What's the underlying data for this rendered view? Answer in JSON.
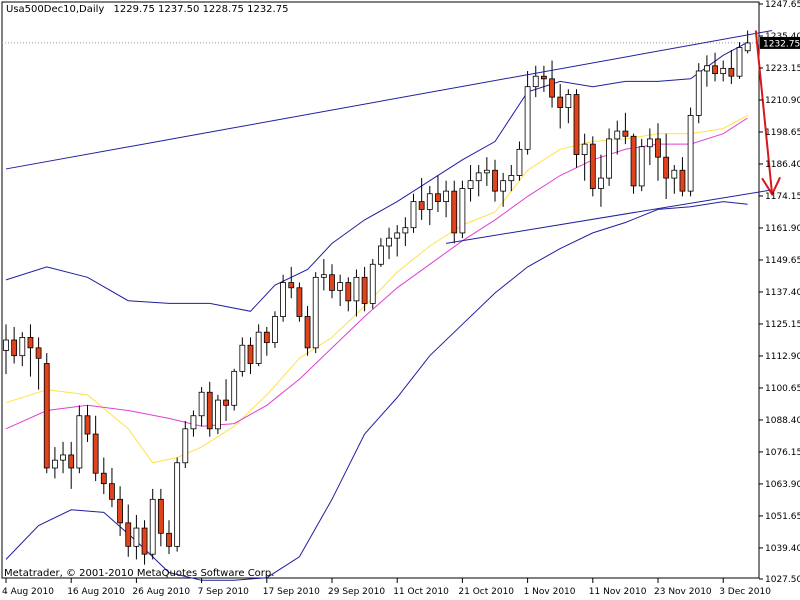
{
  "header": {
    "symbol_text": "Usa500Dec10,Daily",
    "ohlc_text": "1229.75 1237.50 1228.75 1232.75"
  },
  "footer": {
    "copyright": "Metatrader, © 2001-2010 MetaQuotes Software Corp."
  },
  "colors": {
    "background": "#ffffff",
    "frame": "#000000",
    "bull_body": "#ffffff",
    "bear_body": "#e0441c",
    "bollinger": "#1f1f9f",
    "sma_fast": "#ffe14a",
    "sma_slow": "#e040d0",
    "trendline": "#1f1f9f",
    "arrow": "#d81818",
    "current_price_bg": "#000000",
    "current_price_fg": "#ffffff"
  },
  "chart_data": {
    "type": "candlestick",
    "y_axis_ticks": [
      "1247.65",
      "1235.40",
      "1223.15",
      "1210.90",
      "1198.65",
      "1186.40",
      "1174.15",
      "1161.90",
      "1149.65",
      "1137.40",
      "1125.15",
      "1112.90",
      "1100.65",
      "1088.40",
      "1076.15",
      "1063.90",
      "1051.65",
      "1039.40",
      "1027.50"
    ],
    "ylim": [
      1027.5,
      1247.65
    ],
    "current_price": "1232.75",
    "x_axis_labels": [
      "4 Aug 2010",
      "16 Aug 2010",
      "26 Aug 2010",
      "7 Sep 2010",
      "17 Sep 2010",
      "29 Sep 2010",
      "11 Oct 2010",
      "21 Oct 2010",
      "1 Nov 2010",
      "11 Nov 2010",
      "23 Nov 2010",
      "3 Dec 2010"
    ],
    "x_axis_label_indices": [
      0,
      8,
      16,
      24,
      32,
      40,
      48,
      56,
      64,
      72,
      80,
      88
    ],
    "candles": [
      {
        "o": 1115,
        "h": 1125,
        "l": 1106,
        "c": 1119
      },
      {
        "o": 1119,
        "h": 1124,
        "l": 1110,
        "c": 1113
      },
      {
        "o": 1113,
        "h": 1122,
        "l": 1109,
        "c": 1120
      },
      {
        "o": 1120,
        "h": 1125,
        "l": 1105,
        "c": 1116
      },
      {
        "o": 1116,
        "h": 1120,
        "l": 1100,
        "c": 1112
      },
      {
        "o": 1110,
        "h": 1114,
        "l": 1068,
        "c": 1070
      },
      {
        "o": 1070,
        "h": 1078,
        "l": 1066,
        "c": 1073
      },
      {
        "o": 1073,
        "h": 1080,
        "l": 1068,
        "c": 1075
      },
      {
        "o": 1075,
        "h": 1080,
        "l": 1062,
        "c": 1070
      },
      {
        "o": 1070,
        "h": 1094,
        "l": 1068,
        "c": 1090
      },
      {
        "o": 1090,
        "h": 1094,
        "l": 1080,
        "c": 1083
      },
      {
        "o": 1083,
        "h": 1090,
        "l": 1065,
        "c": 1068
      },
      {
        "o": 1068,
        "h": 1074,
        "l": 1060,
        "c": 1064
      },
      {
        "o": 1064,
        "h": 1070,
        "l": 1055,
        "c": 1058
      },
      {
        "o": 1058,
        "h": 1063,
        "l": 1044,
        "c": 1049
      },
      {
        "o": 1049,
        "h": 1056,
        "l": 1036,
        "c": 1040
      },
      {
        "o": 1040,
        "h": 1052,
        "l": 1035,
        "c": 1047
      },
      {
        "o": 1047,
        "h": 1050,
        "l": 1033,
        "c": 1037
      },
      {
        "o": 1037,
        "h": 1062,
        "l": 1035,
        "c": 1058
      },
      {
        "o": 1058,
        "h": 1062,
        "l": 1040,
        "c": 1045
      },
      {
        "o": 1045,
        "h": 1050,
        "l": 1037,
        "c": 1040
      },
      {
        "o": 1040,
        "h": 1074,
        "l": 1038,
        "c": 1072
      },
      {
        "o": 1072,
        "h": 1088,
        "l": 1070,
        "c": 1085
      },
      {
        "o": 1085,
        "h": 1092,
        "l": 1082,
        "c": 1090
      },
      {
        "o": 1090,
        "h": 1101,
        "l": 1086,
        "c": 1099
      },
      {
        "o": 1099,
        "h": 1103,
        "l": 1082,
        "c": 1085
      },
      {
        "o": 1085,
        "h": 1098,
        "l": 1083,
        "c": 1096
      },
      {
        "o": 1096,
        "h": 1104,
        "l": 1088,
        "c": 1094
      },
      {
        "o": 1094,
        "h": 1108,
        "l": 1092,
        "c": 1107
      },
      {
        "o": 1107,
        "h": 1120,
        "l": 1105,
        "c": 1117
      },
      {
        "o": 1117,
        "h": 1120,
        "l": 1106,
        "c": 1110
      },
      {
        "o": 1110,
        "h": 1125,
        "l": 1109,
        "c": 1122
      },
      {
        "o": 1122,
        "h": 1124,
        "l": 1113,
        "c": 1118
      },
      {
        "o": 1118,
        "h": 1130,
        "l": 1116,
        "c": 1128
      },
      {
        "o": 1128,
        "h": 1144,
        "l": 1126,
        "c": 1141
      },
      {
        "o": 1141,
        "h": 1147,
        "l": 1135,
        "c": 1139
      },
      {
        "o": 1139,
        "h": 1141,
        "l": 1126,
        "c": 1128
      },
      {
        "o": 1128,
        "h": 1132,
        "l": 1113,
        "c": 1116
      },
      {
        "o": 1116,
        "h": 1145,
        "l": 1114,
        "c": 1143
      },
      {
        "o": 1143,
        "h": 1150,
        "l": 1138,
        "c": 1144
      },
      {
        "o": 1144,
        "h": 1148,
        "l": 1135,
        "c": 1138
      },
      {
        "o": 1138,
        "h": 1144,
        "l": 1132,
        "c": 1141
      },
      {
        "o": 1141,
        "h": 1143,
        "l": 1130,
        "c": 1134
      },
      {
        "o": 1134,
        "h": 1146,
        "l": 1128,
        "c": 1143
      },
      {
        "o": 1143,
        "h": 1147,
        "l": 1130,
        "c": 1133
      },
      {
        "o": 1133,
        "h": 1150,
        "l": 1131,
        "c": 1148
      },
      {
        "o": 1148,
        "h": 1158,
        "l": 1147,
        "c": 1155
      },
      {
        "o": 1155,
        "h": 1162,
        "l": 1150,
        "c": 1158
      },
      {
        "o": 1158,
        "h": 1163,
        "l": 1151,
        "c": 1160
      },
      {
        "o": 1160,
        "h": 1166,
        "l": 1155,
        "c": 1162
      },
      {
        "o": 1162,
        "h": 1175,
        "l": 1160,
        "c": 1172
      },
      {
        "o": 1172,
        "h": 1181,
        "l": 1165,
        "c": 1169
      },
      {
        "o": 1169,
        "h": 1178,
        "l": 1163,
        "c": 1175
      },
      {
        "o": 1175,
        "h": 1182,
        "l": 1168,
        "c": 1172
      },
      {
        "o": 1172,
        "h": 1180,
        "l": 1166,
        "c": 1176
      },
      {
        "o": 1176,
        "h": 1180,
        "l": 1156,
        "c": 1160
      },
      {
        "o": 1160,
        "h": 1180,
        "l": 1158,
        "c": 1177
      },
      {
        "o": 1177,
        "h": 1186,
        "l": 1172,
        "c": 1180
      },
      {
        "o": 1180,
        "h": 1186,
        "l": 1174,
        "c": 1183
      },
      {
        "o": 1183,
        "h": 1189,
        "l": 1178,
        "c": 1184
      },
      {
        "o": 1184,
        "h": 1188,
        "l": 1172,
        "c": 1176
      },
      {
        "o": 1176,
        "h": 1183,
        "l": 1170,
        "c": 1180
      },
      {
        "o": 1180,
        "h": 1186,
        "l": 1176,
        "c": 1182
      },
      {
        "o": 1182,
        "h": 1195,
        "l": 1180,
        "c": 1192
      },
      {
        "o": 1192,
        "h": 1222,
        "l": 1190,
        "c": 1216
      },
      {
        "o": 1216,
        "h": 1224,
        "l": 1212,
        "c": 1220
      },
      {
        "o": 1220,
        "h": 1224,
        "l": 1214,
        "c": 1219
      },
      {
        "o": 1219,
        "h": 1226,
        "l": 1208,
        "c": 1212
      },
      {
        "o": 1212,
        "h": 1217,
        "l": 1200,
        "c": 1208
      },
      {
        "o": 1208,
        "h": 1215,
        "l": 1202,
        "c": 1213
      },
      {
        "o": 1213,
        "h": 1215,
        "l": 1185,
        "c": 1190
      },
      {
        "o": 1190,
        "h": 1198,
        "l": 1180,
        "c": 1194
      },
      {
        "o": 1194,
        "h": 1197,
        "l": 1174,
        "c": 1177
      },
      {
        "o": 1177,
        "h": 1190,
        "l": 1170,
        "c": 1181
      },
      {
        "o": 1181,
        "h": 1200,
        "l": 1178,
        "c": 1196
      },
      {
        "o": 1196,
        "h": 1203,
        "l": 1190,
        "c": 1199
      },
      {
        "o": 1199,
        "h": 1206,
        "l": 1194,
        "c": 1197
      },
      {
        "o": 1197,
        "h": 1198,
        "l": 1175,
        "c": 1178
      },
      {
        "o": 1178,
        "h": 1196,
        "l": 1176,
        "c": 1193
      },
      {
        "o": 1193,
        "h": 1200,
        "l": 1186,
        "c": 1196
      },
      {
        "o": 1196,
        "h": 1202,
        "l": 1180,
        "c": 1189
      },
      {
        "o": 1189,
        "h": 1198,
        "l": 1173,
        "c": 1181
      },
      {
        "o": 1181,
        "h": 1186,
        "l": 1175,
        "c": 1184
      },
      {
        "o": 1184,
        "h": 1189,
        "l": 1174,
        "c": 1176
      },
      {
        "o": 1176,
        "h": 1208,
        "l": 1174,
        "c": 1205
      },
      {
        "o": 1205,
        "h": 1225,
        "l": 1202,
        "c": 1222
      },
      {
        "o": 1222,
        "h": 1228,
        "l": 1216,
        "c": 1224
      },
      {
        "o": 1224,
        "h": 1229,
        "l": 1218,
        "c": 1221
      },
      {
        "o": 1221,
        "h": 1226,
        "l": 1218,
        "c": 1223
      },
      {
        "o": 1223,
        "h": 1230,
        "l": 1217,
        "c": 1220
      },
      {
        "o": 1220,
        "h": 1233,
        "l": 1219,
        "c": 1231
      },
      {
        "o": 1229.75,
        "h": 1237.5,
        "l": 1228.75,
        "c": 1232.75
      }
    ],
    "trendlines": [
      {
        "i1": 0,
        "p1": 1184.5,
        "i2": 94,
        "p2": 1237.5
      },
      {
        "i1": 54,
        "p1": 1156,
        "i2": 94,
        "p2": 1176.5
      }
    ],
    "arrow": {
      "i1": 92,
      "p1": 1237.5,
      "i2": 94,
      "p2": 1174.8
    },
    "bollinger_upper": [
      [
        0,
        1142
      ],
      [
        5,
        1147
      ],
      [
        10,
        1143
      ],
      [
        15,
        1134
      ],
      [
        20,
        1133
      ],
      [
        25,
        1133
      ],
      [
        30,
        1130
      ],
      [
        33,
        1140
      ],
      [
        37,
        1146
      ],
      [
        40,
        1156
      ],
      [
        44,
        1165
      ],
      [
        48,
        1172
      ],
      [
        52,
        1180
      ],
      [
        56,
        1188
      ],
      [
        60,
        1195
      ],
      [
        64,
        1214
      ],
      [
        68,
        1218
      ],
      [
        72,
        1216
      ],
      [
        76,
        1218
      ],
      [
        80,
        1218
      ],
      [
        84,
        1219
      ],
      [
        88,
        1228
      ],
      [
        91,
        1233
      ]
    ],
    "bollinger_lower": [
      [
        0,
        1035
      ],
      [
        4,
        1048
      ],
      [
        8,
        1054
      ],
      [
        12,
        1053
      ],
      [
        16,
        1042
      ],
      [
        20,
        1030
      ],
      [
        24,
        1027
      ],
      [
        28,
        1027
      ],
      [
        32,
        1028
      ],
      [
        36,
        1036
      ],
      [
        40,
        1058
      ],
      [
        44,
        1083
      ],
      [
        48,
        1097
      ],
      [
        52,
        1113
      ],
      [
        56,
        1125
      ],
      [
        60,
        1137
      ],
      [
        64,
        1147
      ],
      [
        68,
        1154
      ],
      [
        72,
        1160
      ],
      [
        76,
        1164
      ],
      [
        80,
        1169
      ],
      [
        84,
        1170
      ],
      [
        88,
        1172
      ],
      [
        91,
        1171
      ]
    ],
    "sma_fast": [
      [
        0,
        1095
      ],
      [
        5,
        1100
      ],
      [
        10,
        1098
      ],
      [
        15,
        1085
      ],
      [
        18,
        1072
      ],
      [
        21,
        1074
      ],
      [
        24,
        1078
      ],
      [
        28,
        1086
      ],
      [
        32,
        1098
      ],
      [
        36,
        1112
      ],
      [
        40,
        1120
      ],
      [
        44,
        1132
      ],
      [
        48,
        1145
      ],
      [
        52,
        1155
      ],
      [
        56,
        1163
      ],
      [
        60,
        1168
      ],
      [
        64,
        1184
      ],
      [
        68,
        1192
      ],
      [
        72,
        1195
      ],
      [
        76,
        1196
      ],
      [
        80,
        1198
      ],
      [
        84,
        1198
      ],
      [
        88,
        1200
      ],
      [
        91,
        1205
      ]
    ],
    "sma_slow": [
      [
        0,
        1085
      ],
      [
        5,
        1092
      ],
      [
        10,
        1094
      ],
      [
        15,
        1092
      ],
      [
        20,
        1089
      ],
      [
        24,
        1086
      ],
      [
        28,
        1087
      ],
      [
        32,
        1094
      ],
      [
        36,
        1104
      ],
      [
        40,
        1116
      ],
      [
        44,
        1128
      ],
      [
        48,
        1139
      ],
      [
        52,
        1148
      ],
      [
        56,
        1157
      ],
      [
        60,
        1165
      ],
      [
        64,
        1174
      ],
      [
        68,
        1182
      ],
      [
        72,
        1188
      ],
      [
        76,
        1192
      ],
      [
        80,
        1194
      ],
      [
        84,
        1194
      ],
      [
        88,
        1198
      ],
      [
        91,
        1204
      ]
    ]
  }
}
